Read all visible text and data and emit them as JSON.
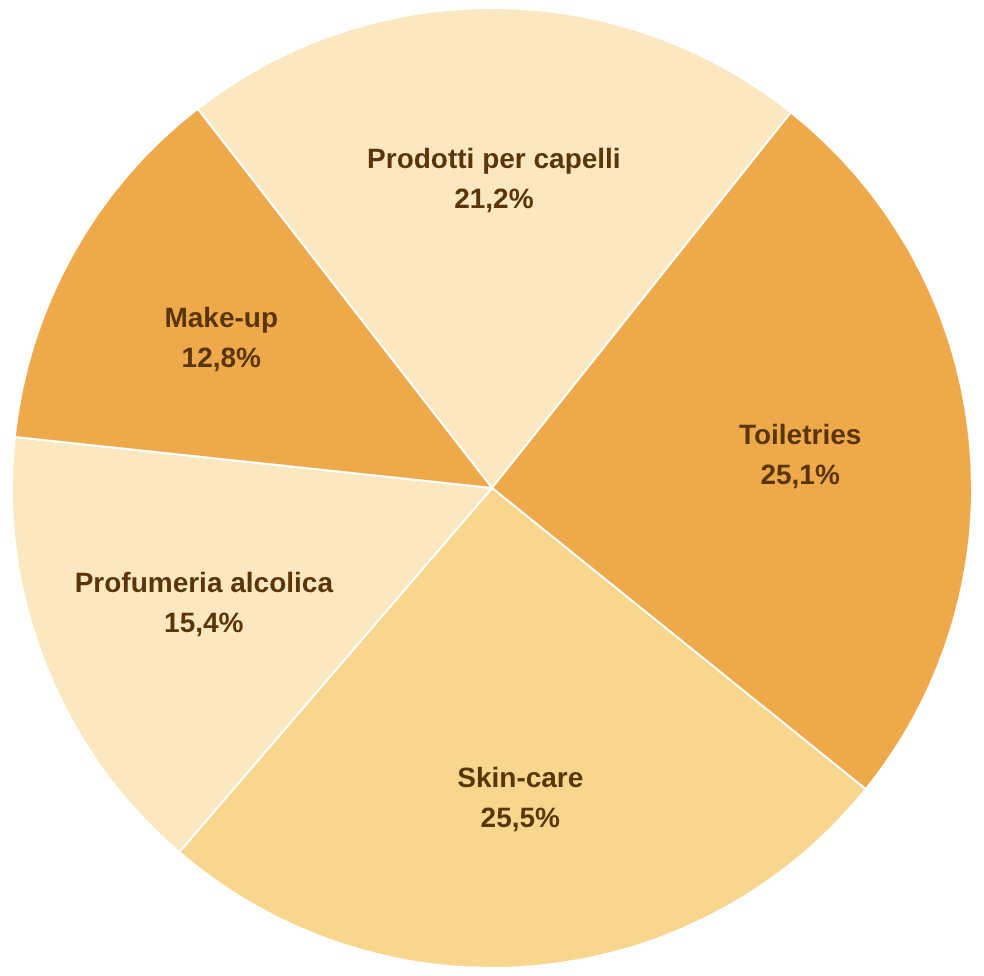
{
  "chart_data": {
    "type": "pie",
    "categories": [
      "Prodotti per capelli",
      "Toiletries",
      "Skin-care",
      "Profumeria alcolica",
      "Make-up"
    ],
    "values": [
      21.2,
      25.1,
      25.5,
      15.4,
      12.8
    ],
    "value_labels": [
      "21,2%",
      "25,1%",
      "25,5%",
      "15,4%",
      "12,8%"
    ],
    "colors": [
      "#fbe7c0",
      "#eda94a",
      "#f8d68e",
      "#fbe7c0",
      "#eda94a"
    ]
  }
}
